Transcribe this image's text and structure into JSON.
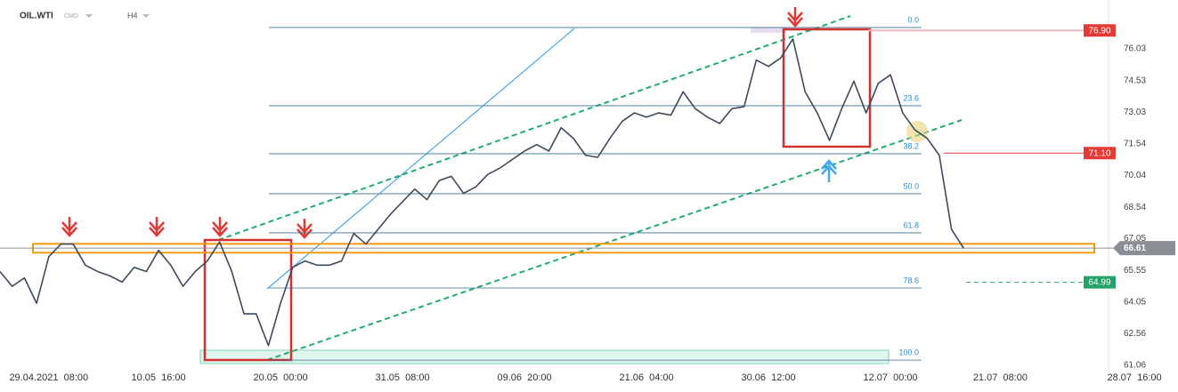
{
  "chart_data": {
    "type": "line",
    "header": {
      "symbol": "OIL.WTI",
      "market": "CMD",
      "interval": "H4"
    },
    "categories": [
      null,
      null,
      null,
      null,
      "29.04.2021  08:00",
      null,
      null,
      null,
      null,
      null,
      null,
      null,
      null,
      "10.05  16:00",
      null,
      null,
      null,
      null,
      null,
      null,
      null,
      null,
      null,
      "20.05  00:00",
      null,
      null,
      null,
      null,
      null,
      null,
      null,
      null,
      null,
      "31.05  08:00",
      null,
      null,
      null,
      null,
      null,
      null,
      null,
      null,
      null,
      "09.06  20:00",
      null,
      null,
      null,
      null,
      null,
      null,
      null,
      null,
      null,
      "21.06  04:00",
      null,
      null,
      null,
      null,
      null,
      null,
      null,
      null,
      null,
      "30.06  12:00",
      null,
      null,
      null,
      null,
      null,
      null,
      null,
      null,
      null,
      "12.07  00:00",
      null,
      null,
      null,
      null,
      null,
      null,
      null,
      null,
      "21.07  08:00",
      null,
      null,
      null,
      null,
      null,
      null,
      null,
      null,
      null,
      null,
      "28.07  16:00"
    ],
    "series": [
      {
        "name": "OIL.WTI",
        "color": "#3d4a5c",
        "values": [
          65.5,
          64.8,
          65.2,
          64.0,
          66.2,
          66.8,
          66.8,
          65.8,
          65.5,
          65.3,
          65.0,
          65.7,
          65.5,
          66.5,
          65.8,
          64.8,
          65.5,
          66.0,
          66.9,
          65.5,
          63.5,
          63.5,
          62.0,
          64.0,
          65.7,
          66.0,
          65.8,
          65.8,
          66.0,
          67.3,
          66.8,
          67.5,
          68.2,
          68.8,
          69.4,
          68.9,
          69.8,
          70.0,
          69.2,
          69.5,
          70.1,
          70.4,
          70.8,
          71.2,
          71.5,
          71.2,
          72.3,
          71.8,
          71.0,
          70.9,
          71.8,
          72.6,
          73.0,
          72.8,
          73.0,
          72.9,
          74.0,
          73.2,
          72.8,
          72.5,
          73.2,
          73.3,
          75.5,
          75.2,
          75.6,
          76.5,
          74.0,
          73.0,
          71.7,
          73.2,
          74.5,
          73.0,
          74.4,
          74.8,
          73.0,
          72.2,
          71.8,
          71.0,
          67.5,
          66.6,
          null,
          null,
          null,
          null,
          null,
          null,
          null,
          null,
          null,
          null,
          null,
          null,
          null,
          null
        ]
      }
    ],
    "ylim": [
      60.77,
      78.34
    ],
    "yticks": [
      76.03,
      74.53,
      73.03,
      71.54,
      70.04,
      68.54,
      67.05,
      65.55,
      64.05,
      62.56,
      61.06
    ],
    "fib_levels": [
      {
        "value": 77.04,
        "label": "0.0"
      },
      {
        "value": 73.34,
        "label": "23.6"
      },
      {
        "value": 71.07,
        "label": "38.2"
      },
      {
        "value": 69.18,
        "label": "50.0"
      },
      {
        "value": 67.33,
        "label": "61.8"
      },
      {
        "value": 64.72,
        "label": "78.6"
      },
      {
        "value": 61.31,
        "label": "100.0"
      }
    ],
    "zone": [
      66.39,
      66.81
    ],
    "price_badges": [
      {
        "value": 76.9,
        "label": "76.90",
        "color": "#e53935"
      },
      {
        "value": 71.1,
        "label": "71.10",
        "color": "#e53935"
      },
      {
        "value": 66.61,
        "label": "66.61",
        "color": "#8a8f96"
      },
      {
        "value": 64.99,
        "label": "64.99",
        "color": "#26a269"
      }
    ]
  }
}
